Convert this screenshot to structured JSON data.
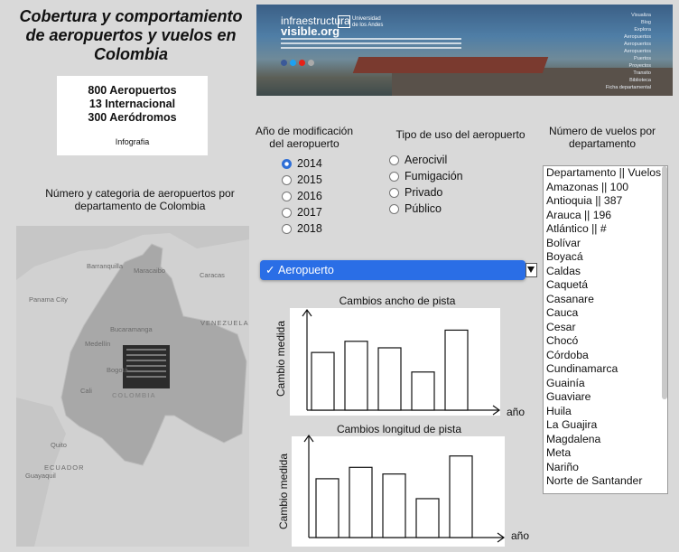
{
  "title": "Cobertura y comportamiento de aeropuertos y vuelos en Colombia",
  "stats": {
    "line1": "800 Aeropuertos",
    "line2": "13 Internacional",
    "line3": "300 Aeródromos",
    "infografia": "Infografia"
  },
  "banner": {
    "brand_top": "infraestructura",
    "brand_bottom": "visible.org",
    "university": "Universidad de los Andes",
    "menu": [
      "Visualiza",
      "Blog",
      "Explora",
      "Aeropuertos",
      "Aeropuertos",
      "Aeropuertos",
      "Puertos",
      "Proyectos",
      "Transito",
      "Biblioteca",
      "Ficha departamental"
    ]
  },
  "map_section": {
    "label": "Número y categoria de aeropuertos por departamento de Colombia",
    "places": [
      "Barranquilla",
      "Maracaibo",
      "Caracas",
      "Panama City",
      "Bucaramanga",
      "Medellín",
      "Bogotá",
      "Cali",
      "VENEZUELA",
      "COLOMBIA",
      "Quito",
      "ECUADOR",
      "Guayaquil"
    ]
  },
  "year_filter": {
    "label": "Año de modificación del aeropuerto",
    "options": [
      "2014",
      "2015",
      "2016",
      "2017",
      "2018"
    ],
    "selected": "2014"
  },
  "use_filter": {
    "label": "Tipo de uso del aeropuerto",
    "options": [
      "Aerocivil",
      "Fumigación",
      "Privado",
      "Público"
    ]
  },
  "dropdown": {
    "selected": "Aeropuerto"
  },
  "flights_section": {
    "label": "Número de vuelos por departamento",
    "items": [
      "Departamento || Vuelos",
      "Amazonas || 100",
      "Antioquia || 387",
      "Arauca || 196",
      "Atlántico || #",
      "Bolívar",
      "Boyacá",
      "Caldas",
      "Caquetá",
      "Casanare",
      "Cauca",
      "Cesar",
      "Chocó",
      "Córdoba",
      "Cundinamarca",
      "Guainía",
      "Guaviare",
      "Huila",
      "La Guajira",
      "Magdalena",
      "Meta",
      "Nariño",
      "Norte de Santander"
    ]
  },
  "colors": {
    "accent": "#2a6ee6",
    "background": "#d9d9d9"
  },
  "chart_data": [
    {
      "type": "bar",
      "title": "Cambios ancho de pista",
      "xlabel": "año",
      "ylabel": "Cambio medida",
      "categories": [
        "",
        "",
        "",
        "",
        ""
      ],
      "values": [
        62,
        74,
        67,
        41,
        86
      ],
      "ylim": [
        0,
        100
      ]
    },
    {
      "type": "bar",
      "title": "Cambios longitud de pista",
      "xlabel": "año",
      "ylabel": "Cambio medida",
      "categories": [
        "",
        "",
        "",
        "",
        ""
      ],
      "values": [
        62,
        74,
        67,
        41,
        86
      ],
      "ylim": [
        0,
        100
      ]
    }
  ]
}
